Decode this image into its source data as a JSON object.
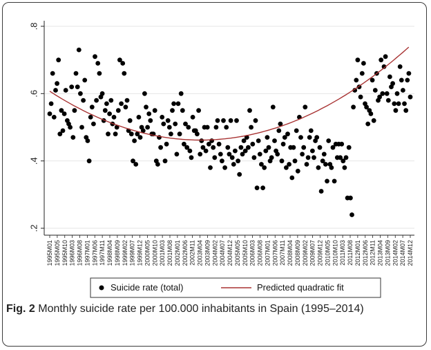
{
  "caption": {
    "label": "Fig. 2",
    "text": "Monthly suicide rate per 100.000 inhabitants in Spain (1995–2014)"
  },
  "chart_data": {
    "type": "scatter",
    "title": "",
    "xlabel": "",
    "ylabel": "",
    "ylim": [
      0.2,
      0.8
    ],
    "yticks": [
      ".2",
      ".4",
      ".6",
      ".8"
    ],
    "ytick_values": [
      0.2,
      0.4,
      0.6,
      0.8
    ],
    "xtick_labels": [
      "1995M01",
      "1995M05",
      "1995M10",
      "1996M03",
      "1996M08",
      "1997M01",
      "1997M06",
      "1997M11",
      "1998M04",
      "1998M09",
      "1999M02",
      "1999M07",
      "1999M12",
      "2000M05",
      "2000M10",
      "2001M03",
      "2001M08",
      "2002M01",
      "2002M06",
      "2002M11",
      "2003M04",
      "2003M09",
      "2004M02",
      "2004M07",
      "2004M12",
      "2005M05",
      "2005M10",
      "2006M03",
      "2006M08",
      "2007M01",
      "2007M06",
      "2007M11",
      "2008M04",
      "2008M09",
      "2009M02",
      "2009M07",
      "2009M12",
      "2010M05",
      "2010M10",
      "2011M03",
      "2011M08",
      "2012M01",
      "2012M06",
      "2012M11",
      "2013M04",
      "2013M09",
      "2014M02",
      "2014M07",
      "2014M12"
    ],
    "x_range_months": [
      0,
      239
    ],
    "grid": "horizontal",
    "legend_position": "bottom",
    "series": [
      {
        "name": "Suicide rate (total)",
        "kind": "scatter",
        "marker": "filled-circle",
        "color": "#000000",
        "values": [
          0.54,
          0.57,
          0.66,
          0.53,
          0.61,
          0.63,
          0.7,
          0.48,
          0.55,
          0.49,
          0.54,
          0.61,
          0.52,
          0.51,
          0.5,
          0.62,
          0.47,
          0.55,
          0.66,
          0.62,
          0.73,
          0.6,
          0.5,
          0.58,
          0.64,
          0.47,
          0.46,
          0.4,
          0.53,
          0.56,
          0.51,
          0.71,
          0.58,
          0.69,
          0.66,
          0.59,
          0.6,
          0.52,
          0.55,
          0.57,
          0.48,
          0.54,
          0.58,
          0.51,
          0.53,
          0.48,
          0.5,
          0.55,
          0.7,
          0.57,
          0.69,
          0.66,
          0.56,
          0.58,
          0.49,
          0.52,
          0.48,
          0.4,
          0.46,
          0.39,
          0.48,
          0.53,
          0.47,
          0.5,
          0.49,
          0.6,
          0.56,
          0.5,
          0.54,
          0.52,
          0.48,
          0.48,
          0.55,
          0.4,
          0.39,
          0.47,
          0.44,
          0.53,
          0.51,
          0.4,
          0.45,
          0.52,
          0.5,
          0.48,
          0.55,
          0.57,
          0.51,
          0.42,
          0.57,
          0.48,
          0.6,
          0.55,
          0.45,
          0.51,
          0.44,
          0.5,
          0.43,
          0.41,
          0.53,
          0.49,
          0.49,
          0.48,
          0.55,
          0.42,
          0.46,
          0.44,
          0.5,
          0.43,
          0.5,
          0.45,
          0.38,
          0.46,
          0.44,
          0.41,
          0.5,
          0.52,
          0.45,
          0.42,
          0.4,
          0.52,
          0.38,
          0.5,
          0.44,
          0.42,
          0.52,
          0.41,
          0.39,
          0.43,
          0.52,
          0.4,
          0.36,
          0.44,
          0.42,
          0.46,
          0.43,
          0.47,
          0.44,
          0.55,
          0.5,
          0.45,
          0.41,
          0.52,
          0.32,
          0.46,
          0.42,
          0.39,
          0.32,
          0.38,
          0.43,
          0.47,
          0.44,
          0.4,
          0.41,
          0.56,
          0.46,
          0.43,
          0.42,
          0.49,
          0.51,
          0.4,
          0.45,
          0.47,
          0.38,
          0.48,
          0.39,
          0.44,
          0.35,
          0.44,
          0.4,
          0.49,
          0.37,
          0.53,
          0.47,
          0.42,
          0.44,
          0.56,
          0.39,
          0.41,
          0.47,
          0.49,
          0.43,
          0.41,
          0.46,
          0.47,
          0.38,
          0.44,
          0.31,
          0.4,
          0.42,
          0.39,
          0.34,
          0.46,
          0.39,
          0.38,
          0.44,
          0.34,
          0.45,
          0.41,
          0.45,
          0.41,
          0.45,
          0.4,
          0.38,
          0.41,
          0.29,
          0.44,
          0.29,
          0.24,
          0.56,
          0.61,
          0.64,
          0.7,
          0.62,
          0.59,
          0.66,
          0.69,
          0.57,
          0.56,
          0.51,
          0.55,
          0.54,
          0.64,
          0.52,
          0.61,
          0.66,
          0.58,
          0.59,
          0.7,
          0.6,
          0.68,
          0.71,
          0.6,
          0.58,
          0.65,
          0.62,
          0.63,
          0.57,
          0.55,
          0.6,
          0.57,
          0.68,
          0.64,
          0.61,
          0.57,
          0.55,
          0.64,
          0.66,
          0.59
        ]
      },
      {
        "name": "Predicted quadratic fit",
        "kind": "line",
        "color": "#a83232",
        "quadratic": {
          "vertex_month": 100,
          "vertex_value": 0.462,
          "coef": 1.45e-05
        }
      }
    ]
  }
}
